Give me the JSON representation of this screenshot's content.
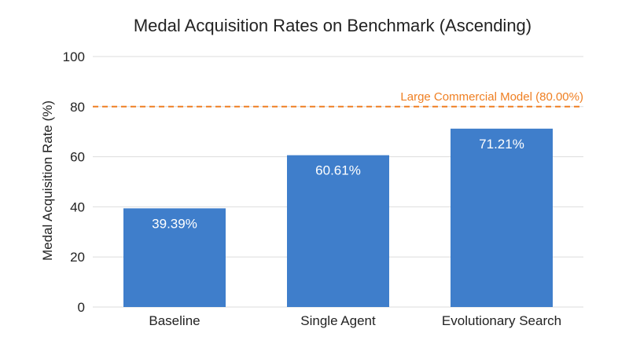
{
  "chart_data": {
    "type": "bar",
    "title": "Medal Acquisition Rates on Benchmark (Ascending)",
    "xlabel": "",
    "ylabel": "Medal Acquisition Rate (%)",
    "ylim": [
      0,
      100
    ],
    "yticks": [
      0,
      20,
      40,
      60,
      80,
      100
    ],
    "grid": true,
    "categories": [
      "Baseline",
      "Single Agent",
      "Evolutionary Search"
    ],
    "values": [
      39.39,
      60.61,
      71.21
    ],
    "data_labels": [
      "39.39%",
      "60.61%",
      "71.21%"
    ],
    "bar_color": "#3f7ecb",
    "reference_line": {
      "value": 80,
      "label": "Large Commercial Model (80.00%)",
      "color": "#ef7f22",
      "style": "dashed"
    }
  }
}
